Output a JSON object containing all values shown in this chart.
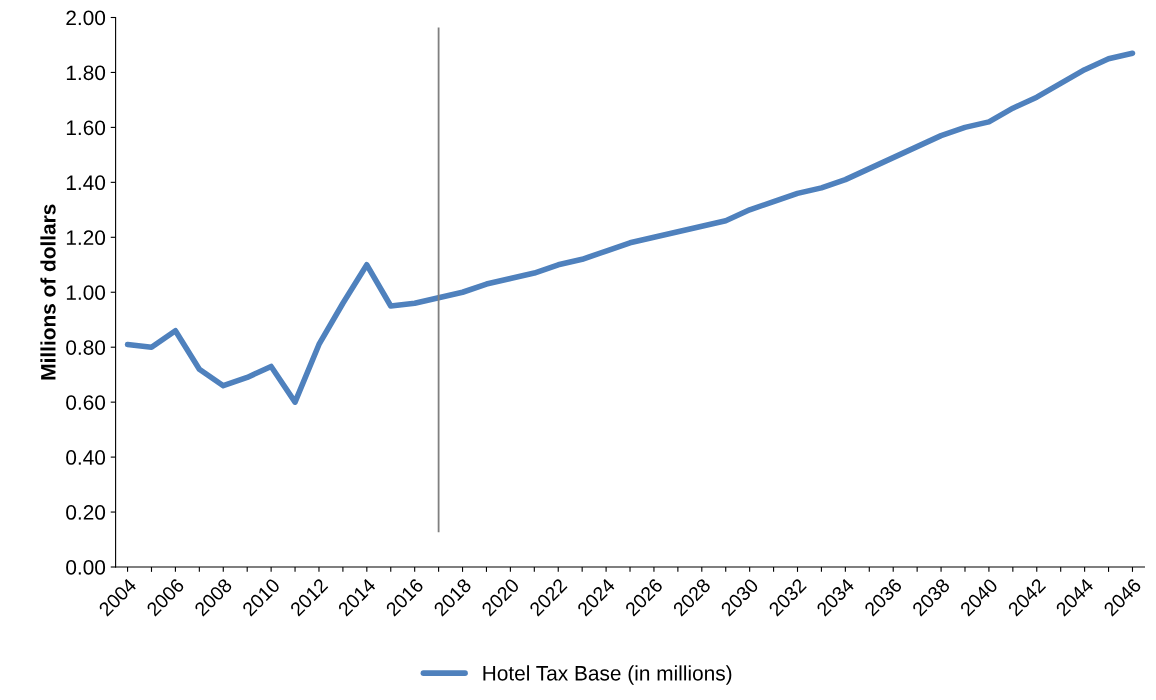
{
  "chart_data": {
    "type": "line",
    "ylabel": "Millions of dollars",
    "x": [
      2004,
      2005,
      2006,
      2007,
      2008,
      2009,
      2010,
      2011,
      2012,
      2013,
      2014,
      2015,
      2016,
      2017,
      2018,
      2019,
      2020,
      2021,
      2022,
      2023,
      2024,
      2025,
      2026,
      2027,
      2028,
      2029,
      2030,
      2031,
      2032,
      2033,
      2034,
      2035,
      2036,
      2037,
      2038,
      2039,
      2040,
      2041,
      2042,
      2043,
      2044,
      2045,
      2046
    ],
    "series": [
      {
        "name": "Hotel Tax Base (in millions)",
        "color": "#4f81bd",
        "values": [
          0.81,
          0.8,
          0.86,
          0.72,
          0.66,
          0.69,
          0.73,
          0.6,
          0.81,
          0.96,
          1.1,
          0.95,
          0.96,
          0.98,
          1.0,
          1.03,
          1.05,
          1.07,
          1.1,
          1.12,
          1.15,
          1.18,
          1.2,
          1.22,
          1.24,
          1.26,
          1.3,
          1.33,
          1.36,
          1.38,
          1.41,
          1.45,
          1.49,
          1.53,
          1.57,
          1.6,
          1.62,
          1.67,
          1.71,
          1.76,
          1.81,
          1.85,
          1.87
        ]
      }
    ],
    "xlim": [
      2003.5,
      2046.5
    ],
    "xticks": [
      2004,
      {
        "value": 2005,
        "label": null
      },
      2006,
      {
        "value": 2007,
        "label": null
      },
      2008,
      {
        "value": 2009,
        "label": null
      },
      2010,
      {
        "value": 2011,
        "label": null
      },
      2012,
      {
        "value": 2013,
        "label": null
      },
      2014,
      {
        "value": 2015,
        "label": null
      },
      2016,
      {
        "value": 2017,
        "label": null
      },
      2018,
      {
        "value": 2019,
        "label": null
      },
      2020,
      {
        "value": 2021,
        "label": null
      },
      2022,
      {
        "value": 2023,
        "label": null
      },
      2024,
      {
        "value": 2025,
        "label": null
      },
      2026,
      {
        "value": 2027,
        "label": null
      },
      2028,
      {
        "value": 2029,
        "label": null
      },
      2030,
      {
        "value": 2031,
        "label": null
      },
      2032,
      {
        "value": 2033,
        "label": null
      },
      2034,
      {
        "value": 2035,
        "label": null
      },
      2036,
      {
        "value": 2037,
        "label": null
      },
      2038,
      {
        "value": 2039,
        "label": null
      },
      2040,
      {
        "value": 2041,
        "label": null
      },
      2042,
      {
        "value": 2043,
        "label": null
      },
      2044,
      {
        "value": 2045,
        "label": null
      },
      2046
    ],
    "ylim": [
      0,
      2
    ],
    "yticks": [
      {
        "value": 0,
        "label": "0.00"
      },
      {
        "value": 0.2,
        "label": "0.20"
      },
      {
        "value": 0.4,
        "label": "0.40"
      },
      {
        "value": 0.6,
        "label": "0.60"
      },
      {
        "value": 0.8,
        "label": "0.80"
      },
      {
        "value": 1.0,
        "label": "1.00"
      },
      {
        "value": 1.2,
        "label": "1.20"
      },
      {
        "value": 1.4,
        "label": "1.40"
      },
      {
        "value": 1.6,
        "label": "1.60"
      },
      {
        "value": 1.8,
        "label": "1.80"
      },
      {
        "value": 2.0,
        "label": "2.00"
      }
    ],
    "ref_lines": [
      {
        "axis": "x",
        "value": 2017,
        "color": "#808080"
      }
    ],
    "legend": "bottom",
    "marker": "none",
    "line_style": "solid"
  }
}
